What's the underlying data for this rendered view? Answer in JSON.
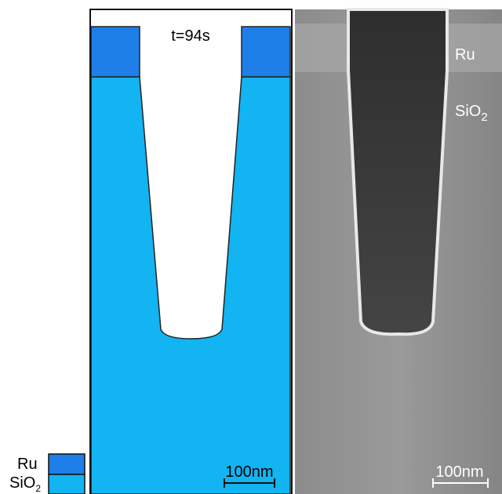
{
  "left_panel": {
    "time_label": "t=94s",
    "scale_bar": "100nm"
  },
  "right_panel": {
    "ru_label": "Ru",
    "sio2_label": {
      "base": "SiO",
      "sub": "2"
    },
    "scale_bar": "100nm"
  },
  "legend": {
    "ru": "Ru",
    "sio2": {
      "base": "SiO",
      "sub": "2"
    }
  }
}
